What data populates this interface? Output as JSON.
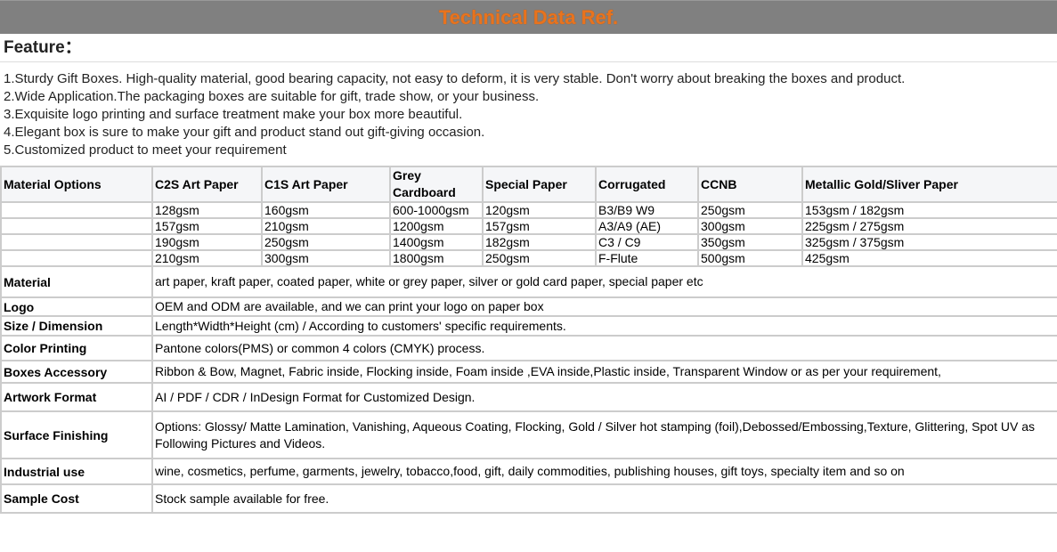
{
  "title": "Technical Data Ref.",
  "feature": {
    "heading": "Feature：",
    "items": [
      "1.Sturdy Gift Boxes. High-quality material, good bearing capacity, not easy to deform, it is very stable. Don't worry about breaking the boxes and product.",
      "2.Wide Application.The packaging boxes are suitable for gift, trade show, or your business.",
      "3.Exquisite logo printing and surface treatment make your box more beautiful.",
      "4.Elegant box is sure to make your gift and product stand out gift-giving occasion.",
      "5.Customized product to meet your requirement"
    ]
  },
  "material_options": {
    "headers": [
      "Material Options",
      "C2S Art Paper",
      "C1S Art Paper",
      "Grey Cardboard",
      "Special Paper",
      "Corrugated",
      "CCNB",
      "Metallic Gold/Sliver Paper"
    ],
    "rows": [
      [
        "",
        "128gsm",
        "160gsm",
        "600-1000gsm",
        "120gsm",
        "B3/B9 W9",
        "250gsm",
        "153gsm / 182gsm"
      ],
      [
        "",
        "157gsm",
        "210gsm",
        "1200gsm",
        "157gsm",
        "A3/A9 (AE)",
        "300gsm",
        "225gsm / 275gsm"
      ],
      [
        "",
        "190gsm",
        "250gsm",
        "1400gsm",
        "182gsm",
        "C3 / C9",
        "350gsm",
        "325gsm / 375gsm"
      ],
      [
        "",
        "210gsm",
        "300gsm",
        "1800gsm",
        "250gsm",
        "F-Flute",
        "500gsm",
        "425gsm"
      ]
    ]
  },
  "specs": [
    {
      "label": "Material",
      "value": "art paper, kraft paper, coated paper, white or grey paper, silver or gold card paper, special paper etc"
    },
    {
      "label": "Logo",
      "value": "OEM and ODM are available, and we can print your logo on paper box"
    },
    {
      "label": "Size / Dimension",
      "value": "Length*Width*Height (cm) / According to customers' specific requirements."
    },
    {
      "label": "Color Printing",
      "value": "Pantone colors(PMS) or common 4 colors (CMYK) process."
    },
    {
      "label": "Boxes Accessory",
      "value": "Ribbon & Bow, Magnet, Fabric inside, Flocking inside, Foam inside ,EVA inside,Plastic inside, Transparent Window or as per your requirement,"
    },
    {
      "label": "Artwork Format",
      "value": "AI / PDF / CDR / InDesign Format for Customized Design."
    },
    {
      "label": "Surface Finishing",
      "value": "Options: Glossy/ Matte Lamination, Vanishing, Aqueous Coating, Flocking, Gold / Silver hot stamping (foil),Debossed/Embossing,Texture, Glittering, Spot UV as Following Pictures and Videos."
    },
    {
      "label": "Industrial use",
      "value": "wine, cosmetics, perfume, garments, jewelry, tobacco,food, gift, daily commodities, publishing houses, gift toys, specialty item and so on"
    },
    {
      "label": "Sample Cost",
      "value": "Stock sample available for free."
    }
  ],
  "colors": {
    "title_bar": "#808080",
    "title_text": "#e8731e",
    "border": "#cccccc",
    "header_bg": "#f5f6f8"
  }
}
